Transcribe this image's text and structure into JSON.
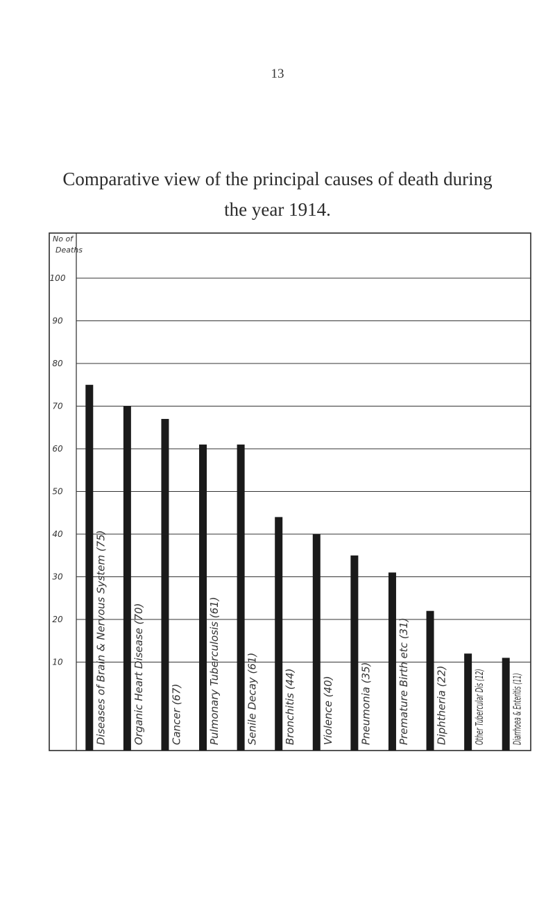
{
  "page_number": "13",
  "title_line1": "Comparative view of the principal causes of death during",
  "title_line2": "the year 1914.",
  "chart_data": {
    "type": "bar",
    "title": "Comparative view of the principal causes of death during the year 1914.",
    "ylabel": "No of Deaths",
    "ylim": [
      0,
      100
    ],
    "yticks": [
      "10",
      "20",
      "30",
      "40",
      "50",
      "60",
      "70",
      "80",
      "90",
      "100"
    ],
    "grid": true,
    "categories": [
      "Diseases of Brain & Nervous System (75)",
      "Organic Heart Disease (70)",
      "Cancer (67)",
      "Pulmonary Tuberculosis (61)",
      "Senile Decay (61)",
      "Bronchitis (44)",
      "Violence (40)",
      "Pneumonia (35)",
      "Premature Birth etc (31)",
      "Diphtheria (22)",
      "Other Tubercular Dis (12)",
      "Diarrhoea & Enteritis (11)"
    ],
    "values": [
      75,
      70,
      67,
      61,
      61,
      44,
      40,
      35,
      31,
      22,
      12,
      11
    ],
    "bar_color": "#1a1a1a"
  }
}
